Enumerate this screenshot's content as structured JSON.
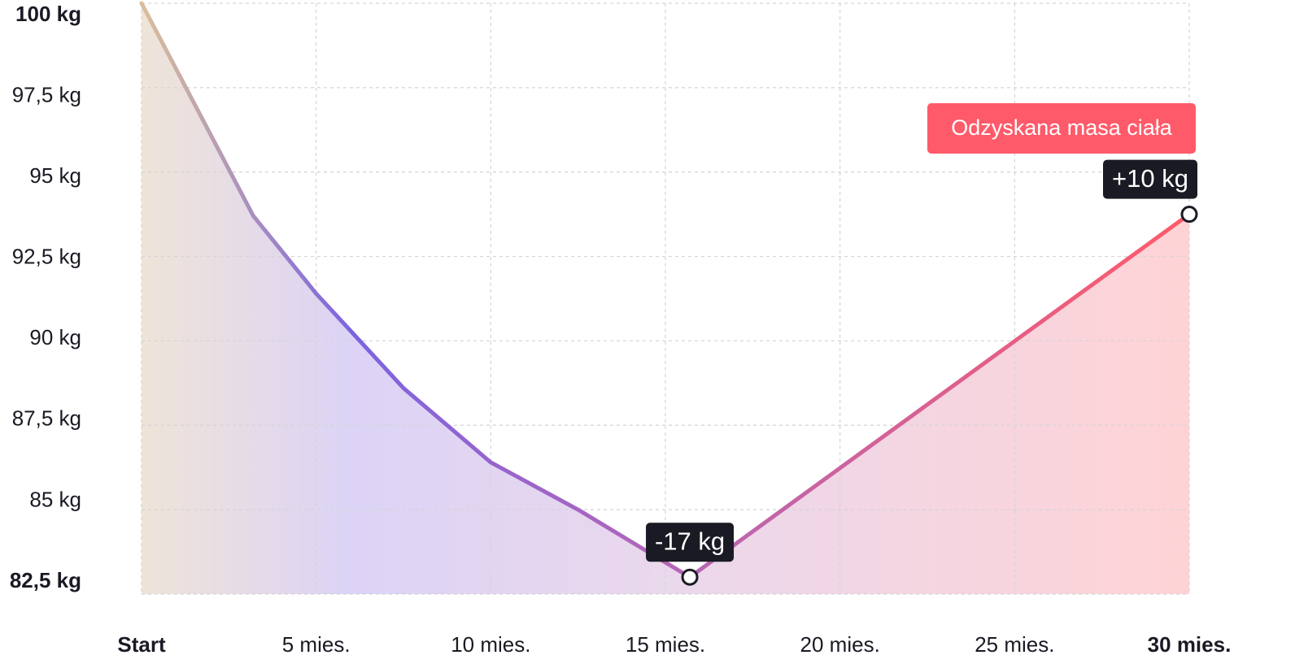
{
  "chart_data": {
    "type": "line",
    "x": [
      0,
      3.2,
      5,
      7.5,
      10,
      12.5,
      15.7,
      30
    ],
    "series": [
      {
        "color": "#ff5a6a",
        "values": [
          100,
          93.7,
          91.4,
          88.6,
          86.4,
          85.0,
          83.0,
          93.75
        ]
      }
    ],
    "xlim": [
      0,
      30
    ],
    "xticks": [
      {
        "value": 0,
        "label": "Start"
      },
      {
        "value": 5,
        "label": "5 mies."
      },
      {
        "value": 10,
        "label": "10 mies."
      },
      {
        "value": 15,
        "label": "15 mies."
      },
      {
        "value": 20,
        "label": "20 mies."
      },
      {
        "value": 25,
        "label": "25 mies."
      },
      {
        "value": 30,
        "label": "30 mies."
      }
    ],
    "ylim": [
      82.5,
      100
    ],
    "yticks": [
      {
        "value": 100,
        "label": "100 kg"
      },
      {
        "value": 97.5,
        "label": "97,5 kg"
      },
      {
        "value": 95,
        "label": "95 kg"
      },
      {
        "value": 92.5,
        "label": "92,5 kg"
      },
      {
        "value": 90,
        "label": "90 kg"
      },
      {
        "value": 87.5,
        "label": "87,5 kg"
      },
      {
        "value": 85,
        "label": "85 kg"
      },
      {
        "value": 82.5,
        "label": "82,5 kg"
      }
    ],
    "grid": true,
    "annotations": [
      {
        "text": "-17 kg"
      },
      {
        "text": "+10 kg"
      },
      {
        "text": "Odzyskana masa ciała"
      }
    ]
  }
}
